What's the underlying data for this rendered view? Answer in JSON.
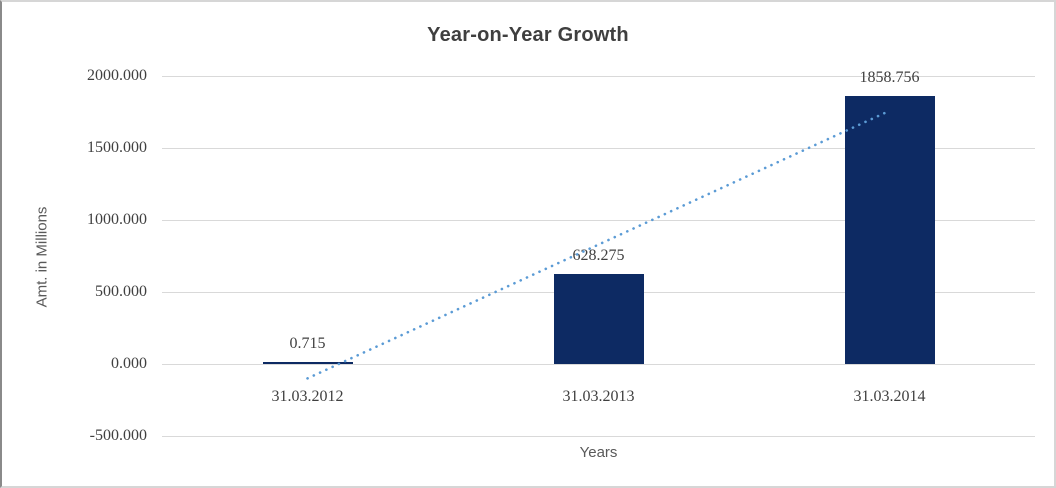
{
  "chart_data": {
    "type": "bar",
    "title": "Year-on-Year Growth",
    "xlabel": "Years",
    "ylabel": "Amt. in Millions",
    "categories": [
      "31.03.2012",
      "31.03.2013",
      "31.03.2014"
    ],
    "values": [
      0.715,
      628.275,
      1858.756
    ],
    "data_labels": [
      "0.715",
      "628.275",
      "1858.756"
    ],
    "ylim": [
      -500,
      2000
    ],
    "ytick_step": 500,
    "yticks": [
      {
        "value": 2000,
        "label": "2000.000"
      },
      {
        "value": 1500,
        "label": "1500.000"
      },
      {
        "value": 1000,
        "label": "1000.000"
      },
      {
        "value": 500,
        "label": "500.000"
      },
      {
        "value": 0,
        "label": "0.000"
      },
      {
        "value": -500,
        "label": "-500.000"
      }
    ],
    "grid": true,
    "legend": "none",
    "colors": {
      "bar": "#0d2a63",
      "trendline": "#5b9bd5",
      "gridline": "#d9d9d9",
      "title_text": "#3f3f3f",
      "tick_text": "#404040",
      "axis_title_text": "#595959"
    },
    "trendline": {
      "type": "linear",
      "style": "dotted",
      "start_value": -99.8,
      "end_value": 1758.3
    }
  }
}
